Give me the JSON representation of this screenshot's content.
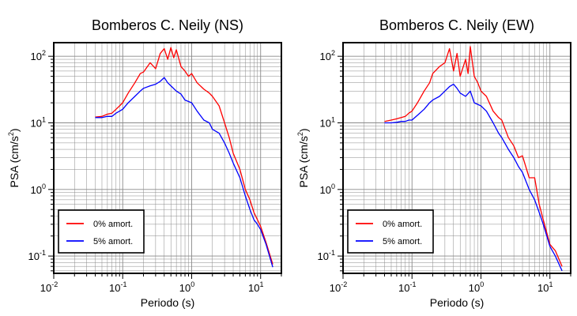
{
  "chart_data": [
    {
      "type": "line",
      "title": "Bomberos C. Neily (NS)",
      "xlabel": "Periodo (s)",
      "ylabel": "PSA (cm/s2)",
      "xscale": "log",
      "yscale": "log",
      "xlim": [
        0.01,
        20
      ],
      "ylim": [
        0.055,
        160
      ],
      "x_ticks": [
        {
          "base": "10",
          "exp": "-2"
        },
        {
          "base": "10",
          "exp": "-1"
        },
        {
          "base": "10",
          "exp": "0"
        },
        {
          "base": "10",
          "exp": "1"
        }
      ],
      "y_ticks": [
        {
          "base": "10",
          "exp": "-1"
        },
        {
          "base": "10",
          "exp": "0"
        },
        {
          "base": "10",
          "exp": "1"
        },
        {
          "base": "10",
          "exp": "2"
        }
      ],
      "grid": true,
      "legend_position": "bottom-left",
      "series": [
        {
          "name": "0% amort.",
          "color": "#ff0000",
          "points": [
            [
              0.04,
              12.2
            ],
            [
              0.05,
              12.5
            ],
            [
              0.06,
              13.5
            ],
            [
              0.07,
              14.0
            ],
            [
              0.08,
              16.0
            ],
            [
              0.09,
              18.0
            ],
            [
              0.1,
              20.0
            ],
            [
              0.12,
              28.0
            ],
            [
              0.15,
              40.0
            ],
            [
              0.18,
              55.0
            ],
            [
              0.2,
              58.0
            ],
            [
              0.25,
              80.0
            ],
            [
              0.3,
              65.0
            ],
            [
              0.35,
              110.0
            ],
            [
              0.4,
              130.0
            ],
            [
              0.45,
              90.0
            ],
            [
              0.5,
              135.0
            ],
            [
              0.55,
              95.0
            ],
            [
              0.6,
              125.0
            ],
            [
              0.7,
              70.0
            ],
            [
              0.8,
              60.0
            ],
            [
              0.9,
              50.0
            ],
            [
              1.0,
              55.0
            ],
            [
              1.2,
              40.0
            ],
            [
              1.5,
              32.0
            ],
            [
              1.8,
              28.0
            ],
            [
              2.0,
              25.0
            ],
            [
              2.5,
              18.0
            ],
            [
              3.0,
              10.0
            ],
            [
              3.5,
              6.0
            ],
            [
              4.0,
              3.5
            ],
            [
              5.0,
              2.0
            ],
            [
              6.0,
              1.0
            ],
            [
              7.0,
              0.7
            ],
            [
              8.0,
              0.45
            ],
            [
              9.0,
              0.35
            ],
            [
              10.0,
              0.28
            ],
            [
              12.0,
              0.16
            ],
            [
              15.0,
              0.075
            ]
          ]
        },
        {
          "name": "5% amort.",
          "color": "#0000ff",
          "points": [
            [
              0.04,
              12.0
            ],
            [
              0.05,
              12.0
            ],
            [
              0.06,
              12.5
            ],
            [
              0.07,
              12.5
            ],
            [
              0.08,
              14.0
            ],
            [
              0.09,
              15.0
            ],
            [
              0.1,
              16.0
            ],
            [
              0.12,
              20.0
            ],
            [
              0.15,
              25.0
            ],
            [
              0.18,
              30.0
            ],
            [
              0.2,
              33.0
            ],
            [
              0.25,
              36.0
            ],
            [
              0.3,
              38.0
            ],
            [
              0.35,
              42.0
            ],
            [
              0.4,
              48.0
            ],
            [
              0.45,
              40.0
            ],
            [
              0.5,
              36.0
            ],
            [
              0.6,
              30.0
            ],
            [
              0.7,
              27.0
            ],
            [
              0.8,
              22.0
            ],
            [
              1.0,
              20.0
            ],
            [
              1.2,
              15.0
            ],
            [
              1.5,
              11.0
            ],
            [
              1.8,
              10.0
            ],
            [
              2.0,
              8.0
            ],
            [
              2.5,
              7.0
            ],
            [
              3.0,
              5.0
            ],
            [
              3.5,
              3.5
            ],
            [
              4.0,
              2.5
            ],
            [
              5.0,
              1.5
            ],
            [
              6.0,
              0.8
            ],
            [
              7.0,
              0.5
            ],
            [
              8.0,
              0.35
            ],
            [
              9.0,
              0.3
            ],
            [
              10.0,
              0.25
            ],
            [
              12.0,
              0.15
            ],
            [
              15.0,
              0.068
            ]
          ]
        }
      ]
    },
    {
      "type": "line",
      "title": "Bomberos C. Neily (EW)",
      "xlabel": "Periodo (s)",
      "ylabel": "PSA (cm/s2)",
      "xscale": "log",
      "yscale": "log",
      "xlim": [
        0.01,
        20
      ],
      "ylim": [
        0.055,
        160
      ],
      "x_ticks": [
        {
          "base": "10",
          "exp": "-2"
        },
        {
          "base": "10",
          "exp": "-1"
        },
        {
          "base": "10",
          "exp": "0"
        },
        {
          "base": "10",
          "exp": "1"
        }
      ],
      "y_ticks": [
        {
          "base": "10",
          "exp": "-1"
        },
        {
          "base": "10",
          "exp": "0"
        },
        {
          "base": "10",
          "exp": "1"
        },
        {
          "base": "10",
          "exp": "2"
        }
      ],
      "grid": true,
      "legend_position": "bottom-left",
      "series": [
        {
          "name": "0% amort.",
          "color": "#ff0000",
          "points": [
            [
              0.04,
              10.5
            ],
            [
              0.05,
              11.0
            ],
            [
              0.06,
              11.5
            ],
            [
              0.07,
              12.0
            ],
            [
              0.08,
              12.5
            ],
            [
              0.09,
              14.0
            ],
            [
              0.1,
              15.0
            ],
            [
              0.12,
              20.0
            ],
            [
              0.15,
              30.0
            ],
            [
              0.18,
              40.0
            ],
            [
              0.2,
              55.0
            ],
            [
              0.25,
              70.0
            ],
            [
              0.3,
              80.0
            ],
            [
              0.35,
              130.0
            ],
            [
              0.4,
              60.0
            ],
            [
              0.45,
              110.0
            ],
            [
              0.5,
              50.0
            ],
            [
              0.6,
              90.0
            ],
            [
              0.65,
              55.0
            ],
            [
              0.7,
              140.0
            ],
            [
              0.8,
              50.0
            ],
            [
              0.9,
              40.0
            ],
            [
              1.0,
              30.0
            ],
            [
              1.2,
              25.0
            ],
            [
              1.5,
              15.0
            ],
            [
              1.8,
              12.0
            ],
            [
              2.0,
              11.0
            ],
            [
              2.5,
              6.0
            ],
            [
              3.0,
              4.5
            ],
            [
              3.5,
              3.0
            ],
            [
              4.0,
              3.2
            ],
            [
              5.0,
              1.5
            ],
            [
              6.0,
              1.5
            ],
            [
              7.0,
              0.6
            ],
            [
              8.0,
              0.35
            ],
            [
              10.0,
              0.15
            ],
            [
              12.0,
              0.12
            ],
            [
              15.0,
              0.07
            ]
          ]
        },
        {
          "name": "5% amort.",
          "color": "#0000ff",
          "points": [
            [
              0.04,
              10.0
            ],
            [
              0.05,
              10.0
            ],
            [
              0.06,
              10.2
            ],
            [
              0.07,
              10.5
            ],
            [
              0.08,
              10.5
            ],
            [
              0.09,
              11.0
            ],
            [
              0.1,
              11.0
            ],
            [
              0.12,
              13.0
            ],
            [
              0.15,
              16.0
            ],
            [
              0.18,
              20.0
            ],
            [
              0.2,
              22.0
            ],
            [
              0.25,
              25.0
            ],
            [
              0.3,
              30.0
            ],
            [
              0.35,
              35.0
            ],
            [
              0.4,
              38.0
            ],
            [
              0.45,
              33.0
            ],
            [
              0.5,
              28.0
            ],
            [
              0.6,
              25.0
            ],
            [
              0.7,
              30.0
            ],
            [
              0.8,
              20.0
            ],
            [
              1.0,
              18.0
            ],
            [
              1.2,
              15.0
            ],
            [
              1.5,
              10.0
            ],
            [
              1.8,
              7.0
            ],
            [
              2.0,
              6.0
            ],
            [
              2.5,
              4.0
            ],
            [
              3.0,
              3.0
            ],
            [
              3.5,
              2.2
            ],
            [
              4.0,
              1.8
            ],
            [
              5.0,
              1.0
            ],
            [
              6.0,
              0.7
            ],
            [
              7.0,
              0.45
            ],
            [
              8.0,
              0.3
            ],
            [
              10.0,
              0.14
            ],
            [
              12.0,
              0.1
            ],
            [
              15.0,
              0.06
            ]
          ]
        }
      ]
    }
  ]
}
